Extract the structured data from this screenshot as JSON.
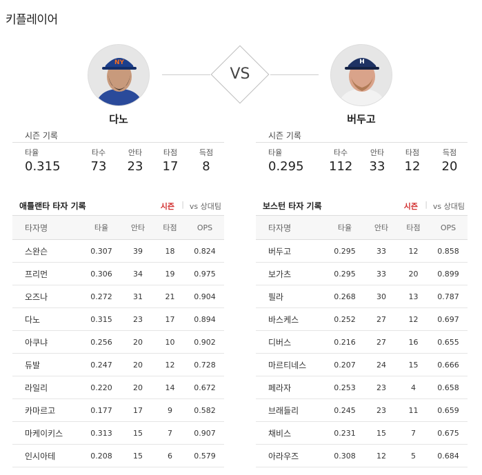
{
  "page": {
    "title": "키플레이어"
  },
  "vs_label": "VS",
  "left_player": {
    "name": "다노",
    "season_title": "시즌 기록",
    "stats": [
      {
        "label": "타율",
        "value": "0.315"
      },
      {
        "label": "타수",
        "value": "73"
      },
      {
        "label": "안타",
        "value": "23"
      },
      {
        "label": "타점",
        "value": "17"
      },
      {
        "label": "득점",
        "value": "8"
      }
    ]
  },
  "right_player": {
    "name": "버두고",
    "season_title": "시즌 기록",
    "stats": [
      {
        "label": "타율",
        "value": "0.295"
      },
      {
        "label": "타수",
        "value": "112"
      },
      {
        "label": "안타",
        "value": "33"
      },
      {
        "label": "타점",
        "value": "12"
      },
      {
        "label": "득점",
        "value": "20"
      }
    ]
  },
  "left_team": {
    "title": "애틀랜타 타자 기록",
    "tab_season": "시즌",
    "tab_sep": "|",
    "tab_vs": "vs 상대팀",
    "headers": [
      "타자명",
      "타율",
      "안타",
      "타점",
      "OPS"
    ],
    "rows": [
      [
        "스완슨",
        "0.307",
        "39",
        "18",
        "0.824"
      ],
      [
        "프리먼",
        "0.306",
        "34",
        "19",
        "0.975"
      ],
      [
        "오즈나",
        "0.272",
        "31",
        "21",
        "0.904"
      ],
      [
        "다노",
        "0.315",
        "23",
        "17",
        "0.894"
      ],
      [
        "아쿠냐",
        "0.256",
        "20",
        "10",
        "0.902"
      ],
      [
        "듀발",
        "0.247",
        "20",
        "12",
        "0.728"
      ],
      [
        "라일리",
        "0.220",
        "20",
        "14",
        "0.672"
      ],
      [
        "카마르고",
        "0.177",
        "17",
        "9",
        "0.582"
      ],
      [
        "마케이키스",
        "0.313",
        "15",
        "7",
        "0.907"
      ],
      [
        "인시아테",
        "0.208",
        "15",
        "6",
        "0.579"
      ]
    ]
  },
  "right_team": {
    "title": "보스턴 타자 기록",
    "tab_season": "시즌",
    "tab_sep": "|",
    "tab_vs": "vs 상대팀",
    "headers": [
      "타자명",
      "타율",
      "안타",
      "타점",
      "OPS"
    ],
    "rows": [
      [
        "버두고",
        "0.295",
        "33",
        "12",
        "0.858"
      ],
      [
        "보가츠",
        "0.295",
        "33",
        "20",
        "0.899"
      ],
      [
        "필라",
        "0.268",
        "30",
        "13",
        "0.787"
      ],
      [
        "바스케스",
        "0.252",
        "27",
        "12",
        "0.697"
      ],
      [
        "디버스",
        "0.216",
        "27",
        "16",
        "0.655"
      ],
      [
        "마르티네스",
        "0.207",
        "24",
        "15",
        "0.666"
      ],
      [
        "페라자",
        "0.253",
        "23",
        "4",
        "0.658"
      ],
      [
        "브래들리",
        "0.245",
        "23",
        "11",
        "0.659"
      ],
      [
        "채비스",
        "0.231",
        "15",
        "7",
        "0.675"
      ],
      [
        "아라우즈",
        "0.308",
        "12",
        "5",
        "0.684"
      ]
    ]
  },
  "colors": {
    "accent": "#d23030",
    "left_cap": "#1c3f8c",
    "right_cap": "#1e3263"
  }
}
